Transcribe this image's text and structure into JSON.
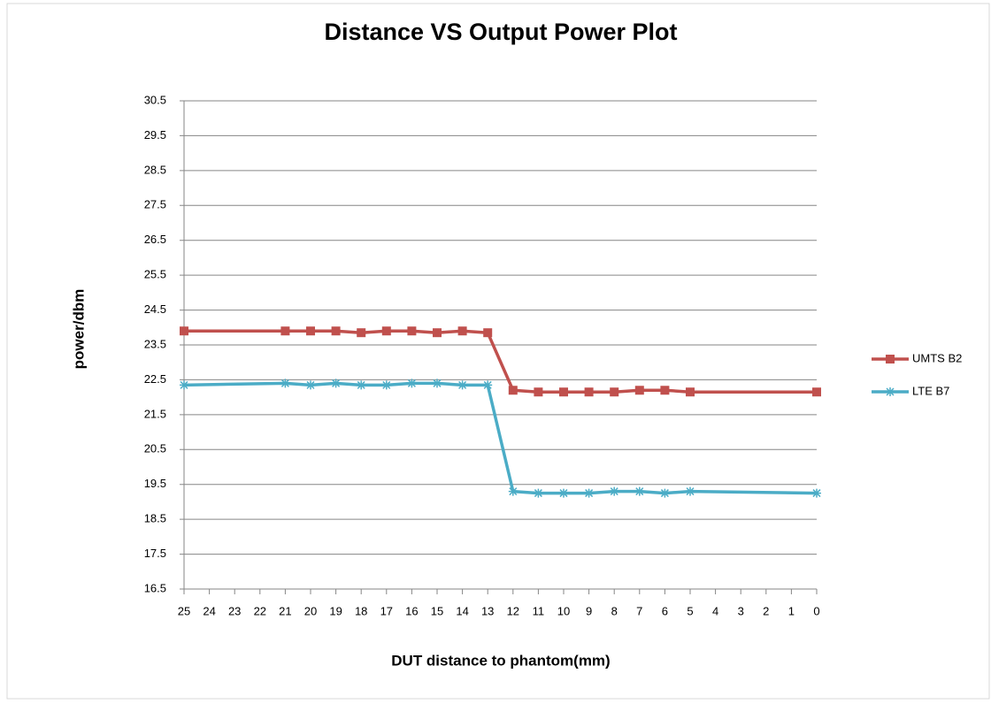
{
  "chart_data": {
    "type": "line",
    "title": "Distance VS Output Power Plot",
    "x_label": "DUT distance to phantom(mm)",
    "y_label": "power/dbm",
    "x": [
      25,
      21,
      20,
      19,
      18,
      17,
      16,
      15,
      14,
      13,
      12,
      11,
      10,
      9,
      8,
      7,
      6,
      5,
      0
    ],
    "series": [
      {
        "name": "UMTS B2",
        "color": "#c0504d",
        "marker": "square",
        "values": [
          23.9,
          23.9,
          23.9,
          23.9,
          23.85,
          23.9,
          23.9,
          23.85,
          23.9,
          23.85,
          22.2,
          22.15,
          22.15,
          22.15,
          22.15,
          22.2,
          22.2,
          22.15,
          22.15
        ]
      },
      {
        "name": "LTE B7",
        "color": "#4bacc6",
        "marker": "star",
        "values": [
          22.35,
          22.4,
          22.35,
          22.4,
          22.35,
          22.35,
          22.4,
          22.4,
          22.35,
          22.35,
          19.3,
          19.25,
          19.25,
          19.25,
          19.3,
          19.3,
          19.25,
          19.3,
          19.25
        ]
      }
    ],
    "xlim": [
      25,
      0
    ],
    "xticks": [
      25,
      24,
      23,
      22,
      21,
      20,
      19,
      18,
      17,
      16,
      15,
      14,
      13,
      12,
      11,
      10,
      9,
      8,
      7,
      6,
      5,
      4,
      3,
      2,
      1,
      0
    ],
    "ylim": [
      16.5,
      30.5
    ],
    "yticks": [
      16.5,
      17.5,
      18.5,
      19.5,
      20.5,
      21.5,
      22.5,
      23.5,
      24.5,
      25.5,
      26.5,
      27.5,
      28.5,
      29.5,
      30.5
    ],
    "grid": true,
    "legend": "right"
  }
}
